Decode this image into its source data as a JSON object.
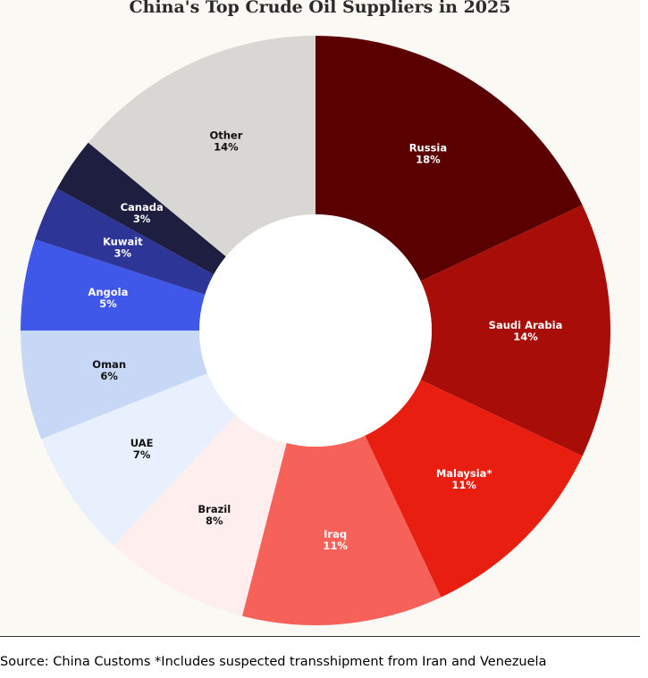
{
  "chart_data": {
    "type": "pie",
    "variant": "donut",
    "title": "China's Top Crude Oil Suppliers in 2025",
    "unit": "%",
    "slices": [
      {
        "label": "Russia",
        "value": 18,
        "color": "#5a0000",
        "label_color": "#ffffff"
      },
      {
        "label": "Saudi Arabia",
        "value": 14,
        "color": "#a80d08",
        "label_color": "#ffffff"
      },
      {
        "label": "Malaysia*",
        "value": 11,
        "color": "#e81e10",
        "label_color": "#ffffff"
      },
      {
        "label": "Iraq",
        "value": 11,
        "color": "#f6625a",
        "label_color": "#ffffff"
      },
      {
        "label": "Brazil",
        "value": 8,
        "color": "#ffeeee",
        "label_color": "#111111"
      },
      {
        "label": "UAE",
        "value": 7,
        "color": "#e9f0fd",
        "label_color": "#111111"
      },
      {
        "label": "Oman",
        "value": 6,
        "color": "#c7d8f6",
        "label_color": "#111111"
      },
      {
        "label": "Angola",
        "value": 5,
        "color": "#3f58ea",
        "label_color": "#ffffff"
      },
      {
        "label": "Kuwait",
        "value": 3,
        "color": "#2d3596",
        "label_color": "#ffffff"
      },
      {
        "label": "Canada",
        "value": 3,
        "color": "#1e1f40",
        "label_color": "#ffffff"
      },
      {
        "label": "Other",
        "value": 14,
        "color": "#d9d7d3",
        "label_color": "#111111"
      }
    ]
  },
  "footer": {
    "source_note": "Source: China Customs *Includes suspected transshipment from Iran and Venezuela"
  }
}
